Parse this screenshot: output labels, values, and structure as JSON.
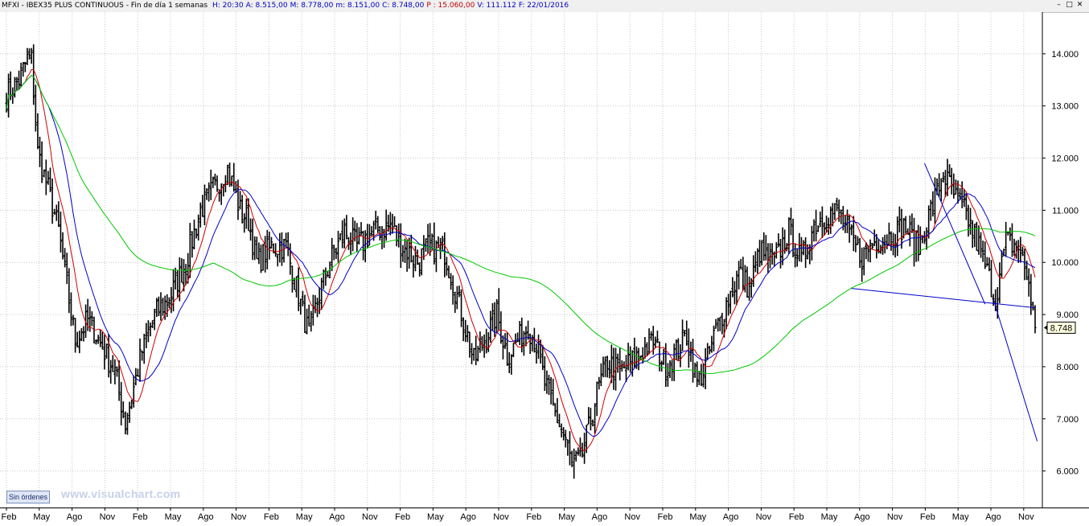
{
  "header": {
    "symbol": "MFXI - IBEX35 PLUS CONTINUOUS - Fin de día 1 semanas",
    "fields": [
      {
        "label": "H:",
        "value": "20:30",
        "color": "#0000c0"
      },
      {
        "label": "A:",
        "value": "8.515,00",
        "color": "#0000c0"
      },
      {
        "label": "M:",
        "value": "8.778,00",
        "color": "#0000c0"
      },
      {
        "label": "m:",
        "value": "8.151,00",
        "color": "#0000c0"
      },
      {
        "label": "C:",
        "value": "8.748,00",
        "color": "#0000c0"
      },
      {
        "label": "P :",
        "value": "15.060,00",
        "color": "#c00000"
      },
      {
        "label": "V:",
        "value": "111.112",
        "color": "#0000c0"
      },
      {
        "label": "F:",
        "value": "22/01/2016",
        "color": "#0000c0"
      }
    ],
    "window_buttons": [
      {
        "icon": "minimize-icon",
        "glyph": "–"
      },
      {
        "icon": "restore-icon",
        "glyph": "□"
      },
      {
        "icon": "close-icon",
        "glyph": "✕"
      }
    ]
  },
  "footer": {
    "orders_label": "Sin órdenes",
    "watermark": "www.visualchart.com"
  },
  "chart_data": {
    "type": "ohlc",
    "title": "MFXI - IBEX35 PLUS CONTINUOUS",
    "ylim": [
      5300,
      14800
    ],
    "y_ticks": [
      6000,
      7000,
      8000,
      9000,
      10000,
      11000,
      12000,
      13000,
      14000
    ],
    "y_tick_labels": [
      "6.000",
      "7.000",
      "8.000",
      "9.000",
      "10.000",
      "11.000",
      "12.000",
      "13.000",
      "14.000"
    ],
    "x_tick_labels": [
      "Feb",
      "May",
      "Ago",
      "Nov",
      "Feb",
      "May",
      "Ago",
      "Nov",
      "Feb",
      "May",
      "Ago",
      "Nov",
      "Feb",
      "May",
      "Ago",
      "Nov",
      "Feb",
      "May",
      "Ago",
      "Nov",
      "Feb",
      "May",
      "Ago",
      "Nov",
      "Feb",
      "May",
      "Ago",
      "Nov",
      "Feb",
      "May",
      "Ago",
      "Nov"
    ],
    "last_price_label": "8.748",
    "last_price": 8748,
    "price_anchors": [
      [
        0,
        13200
      ],
      [
        6,
        13500
      ],
      [
        10,
        13900
      ],
      [
        12,
        13900
      ],
      [
        15,
        12100
      ],
      [
        20,
        11400
      ],
      [
        25,
        10600
      ],
      [
        33,
        8500
      ],
      [
        39,
        8900
      ],
      [
        47,
        8300
      ],
      [
        52,
        7900
      ],
      [
        57,
        6900
      ],
      [
        61,
        7600
      ],
      [
        65,
        8300
      ],
      [
        71,
        9000
      ],
      [
        78,
        9300
      ],
      [
        86,
        10000
      ],
      [
        93,
        11000
      ],
      [
        99,
        11400
      ],
      [
        106,
        11800
      ],
      [
        112,
        11000
      ],
      [
        116,
        10800
      ],
      [
        120,
        10000
      ],
      [
        127,
        10300
      ],
      [
        134,
        10300
      ],
      [
        141,
        9200
      ],
      [
        145,
        8600
      ],
      [
        150,
        9400
      ],
      [
        155,
        10000
      ],
      [
        162,
        10600
      ],
      [
        168,
        10300
      ],
      [
        176,
        10600
      ],
      [
        184,
        10700
      ],
      [
        190,
        10300
      ],
      [
        197,
        10000
      ],
      [
        202,
        10300
      ],
      [
        210,
        10200
      ],
      [
        217,
        9200
      ],
      [
        224,
        8100
      ],
      [
        229,
        8500
      ],
      [
        235,
        9000
      ],
      [
        240,
        8200
      ],
      [
        245,
        8500
      ],
      [
        250,
        8800
      ],
      [
        254,
        8400
      ],
      [
        258,
        7700
      ],
      [
        263,
        7100
      ],
      [
        268,
        6600
      ],
      [
        271,
        6100
      ],
      [
        275,
        6200
      ],
      [
        279,
        6800
      ],
      [
        283,
        7500
      ],
      [
        288,
        8100
      ],
      [
        294,
        7900
      ],
      [
        300,
        8100
      ],
      [
        305,
        8300
      ],
      [
        310,
        8500
      ],
      [
        316,
        8000
      ],
      [
        321,
        8300
      ],
      [
        326,
        8600
      ],
      [
        331,
        7700
      ],
      [
        335,
        8000
      ],
      [
        340,
        8700
      ],
      [
        345,
        9200
      ],
      [
        351,
        9800
      ],
      [
        356,
        9500
      ],
      [
        361,
        10200
      ],
      [
        368,
        10000
      ],
      [
        375,
        10600
      ],
      [
        381,
        10000
      ],
      [
        387,
        10700
      ],
      [
        393,
        10900
      ],
      [
        399,
        11000
      ],
      [
        404,
        10500
      ],
      [
        410,
        10100
      ],
      [
        416,
        10400
      ],
      [
        423,
        10500
      ],
      [
        430,
        10700
      ],
      [
        437,
        10300
      ],
      [
        443,
        11000
      ],
      [
        449,
        11700
      ],
      [
        454,
        11300
      ],
      [
        460,
        10900
      ],
      [
        466,
        10300
      ],
      [
        471,
        9700
      ],
      [
        474,
        9300
      ],
      [
        479,
        10400
      ],
      [
        485,
        10300
      ],
      [
        490,
        9600
      ],
      [
        493,
        8748
      ]
    ],
    "series": [
      {
        "name": "",
        "color": "#d00000",
        "period": 10
      },
      {
        "name": "",
        "color": "#0000c8",
        "period": 20
      },
      {
        "name": "",
        "color": "#00c800",
        "period": 100
      }
    ],
    "trend_lines": [
      {
        "color": "#0000c8",
        "points": [
          [
            12000,
            1470
          ],
          [
            2540,
            14400
          ]
        ]
      }
    ],
    "grid": true,
    "legend": "none"
  }
}
